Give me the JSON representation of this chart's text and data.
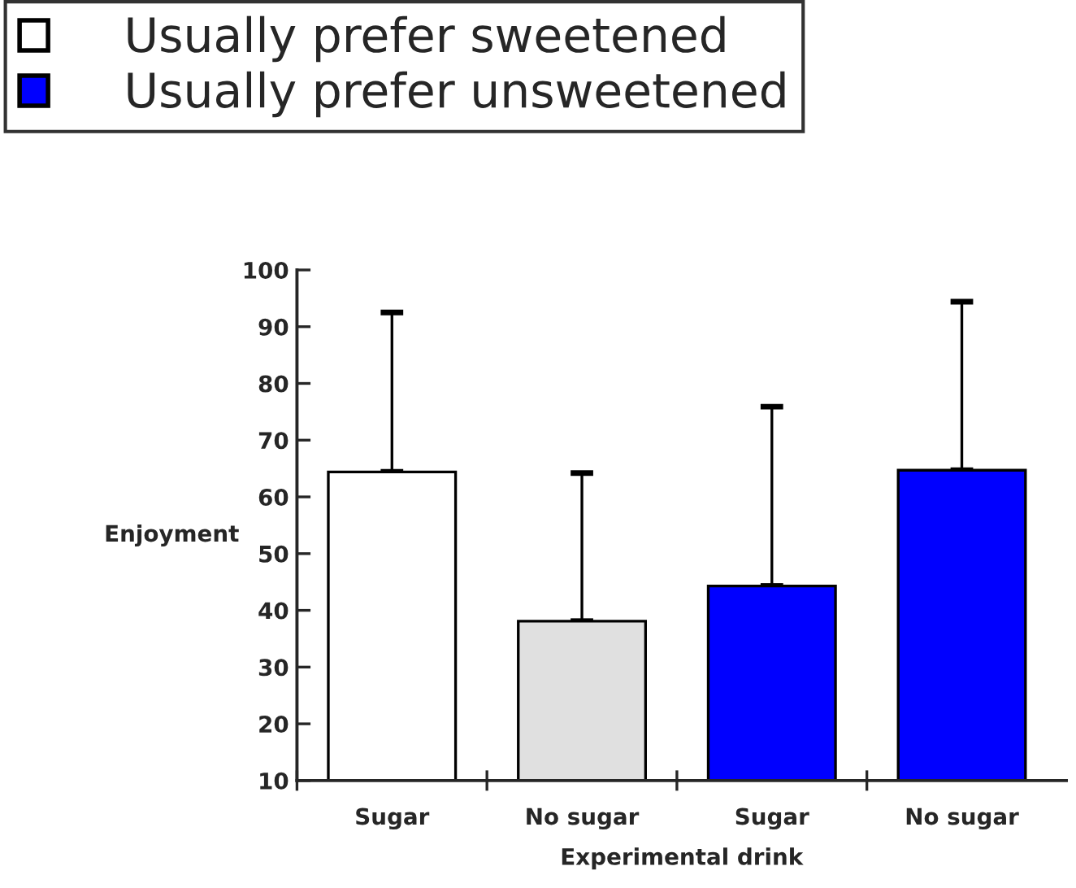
{
  "chart_data": {
    "type": "bar",
    "categories": [
      "Sugar",
      "No sugar",
      "Sugar",
      "No sugar"
    ],
    "series": [
      {
        "name": "Usually prefer sweetened",
        "color": "#ffffff",
        "colors": [
          "#ffffff",
          "#e0e0e0",
          null,
          null
        ],
        "values": [
          64.4,
          38.1,
          null,
          null
        ],
        "errors": [
          [
            64.4,
            92.5
          ],
          [
            38.1,
            64.2
          ],
          null,
          null
        ]
      },
      {
        "name": "Usually prefer unsweetened",
        "color": "#0000ff",
        "values": [
          null,
          null,
          44.3,
          64.7
        ],
        "errors": [
          null,
          null,
          [
            44.3,
            75.9
          ],
          [
            64.7,
            94.4
          ]
        ]
      }
    ],
    "xlabel": "Experimental drink",
    "ylabel": "Enjoyment",
    "ylim": [
      10,
      100
    ],
    "yticks": [
      10,
      20,
      30,
      40,
      50,
      60,
      70,
      80,
      90,
      100
    ],
    "grid": false,
    "legend": "top"
  }
}
